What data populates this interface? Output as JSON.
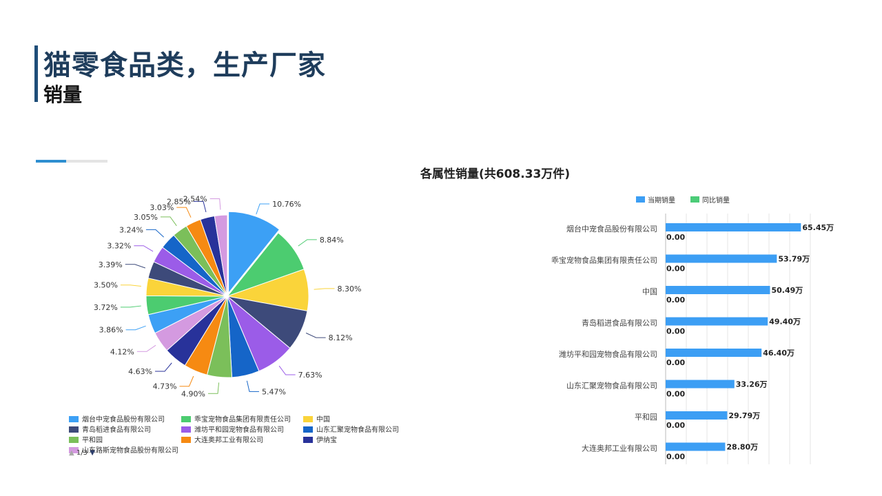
{
  "page": {
    "title": "猫零食品类，生产厂家",
    "subtitle": "销量"
  },
  "pie_chart": {
    "title": "各属性销量(共608.33万件)",
    "pager": {
      "current": "1",
      "total": "3"
    }
  },
  "colors": {
    "title_bar": "#1f4e79",
    "accent": "#2e8ed0",
    "bar_current": "#3c9ef4",
    "bar_yoy": "#4ccc78"
  },
  "chart_data": [
    {
      "type": "pie",
      "title": "各属性销量(共608.33万件)",
      "slices": [
        {
          "label": "烟台中宠食品股份有限公司",
          "percent": 10.76,
          "color": "#3ca0f5",
          "legend": true
        },
        {
          "label": "乖宝宠物食品集团有限责任公司",
          "percent": 8.84,
          "color": "#4ccc70",
          "legend": true
        },
        {
          "label": "中国",
          "percent": 8.3,
          "color": "#fad43a",
          "legend": true
        },
        {
          "label": "青岛稻进食品有限公司",
          "percent": 8.12,
          "color": "#3d4a7a",
          "legend": true
        },
        {
          "label": "潍坊平和园宠物食品有限公司",
          "percent": 7.63,
          "color": "#9b5ce8",
          "legend": true
        },
        {
          "label": "山东汇聚宠物食品有限公司",
          "percent": 5.47,
          "color": "#1565c8",
          "legend": true
        },
        {
          "label": "平和园",
          "percent": 4.9,
          "color": "#7bbf5a",
          "legend": true
        },
        {
          "label": "大连奥邦工业有限公司",
          "percent": 4.73,
          "color": "#f68a12",
          "legend": true
        },
        {
          "label": "伊纳宝",
          "percent": 4.63,
          "color": "#28329a",
          "legend": true
        },
        {
          "label": "山东路斯宠物食品股份有限公司",
          "percent": 4.12,
          "color": "#d49ae0",
          "legend": true
        },
        {
          "label": "",
          "percent": 3.86,
          "color": "#3ca0f5",
          "legend": false
        },
        {
          "label": "",
          "percent": 3.72,
          "color": "#4ccc70",
          "legend": false
        },
        {
          "label": "",
          "percent": 3.5,
          "color": "#fad43a",
          "legend": false
        },
        {
          "label": "",
          "percent": 3.39,
          "color": "#3d4a7a",
          "legend": false
        },
        {
          "label": "",
          "percent": 3.32,
          "color": "#9b5ce8",
          "legend": false
        },
        {
          "label": "",
          "percent": 3.24,
          "color": "#1565c8",
          "legend": false
        },
        {
          "label": "",
          "percent": 3.05,
          "color": "#7bbf5a",
          "legend": false
        },
        {
          "label": "",
          "percent": 3.03,
          "color": "#f68a12",
          "legend": false
        },
        {
          "label": "",
          "percent": 2.85,
          "color": "#28329a",
          "legend": false
        },
        {
          "label": "",
          "percent": 2.54,
          "color": "#d49ae0",
          "legend": false
        }
      ],
      "data_labels": [
        "10.76%",
        "8.84%",
        "8.30%",
        "8.12%",
        "7.63%",
        "5.47%",
        "4.90%",
        "4.73%",
        "4.63%",
        "4.12%",
        "3.86%",
        "3.72%",
        "3.50%",
        "3.39%",
        "3.32%",
        "3.24%",
        "3.05%",
        "3.03%",
        "2.85%",
        "2.54%"
      ]
    },
    {
      "type": "bar",
      "orientation": "horizontal",
      "legend": [
        "当期销量",
        "同比销量"
      ],
      "legend_placement": "top",
      "categories": [
        "烟台中宠食品股份有限公司",
        "乖宝宠物食品集团有限责任公司",
        "中国",
        "青岛稻进食品有限公司",
        "潍坊平和园宠物食品有限公司",
        "山东汇聚宠物食品有限公司",
        "平和园",
        "大连奥邦工业有限公司"
      ],
      "series": [
        {
          "name": "当期销量",
          "values": [
            65.45,
            53.79,
            50.49,
            49.4,
            46.4,
            33.26,
            29.79,
            28.8
          ],
          "labels": [
            "65.45万",
            "53.79万",
            "50.49万",
            "49.40万",
            "46.40万",
            "33.26万",
            "29.79万",
            "28.80万"
          ]
        },
        {
          "name": "同比销量",
          "values": [
            0,
            0,
            0,
            0,
            0,
            0,
            0,
            0
          ],
          "labels": [
            "0.00",
            "0.00",
            "0.00",
            "0.00",
            "0.00",
            "0.00",
            "0.00",
            "0.00"
          ]
        }
      ],
      "xlim": [
        0,
        70
      ],
      "grid": true
    }
  ]
}
